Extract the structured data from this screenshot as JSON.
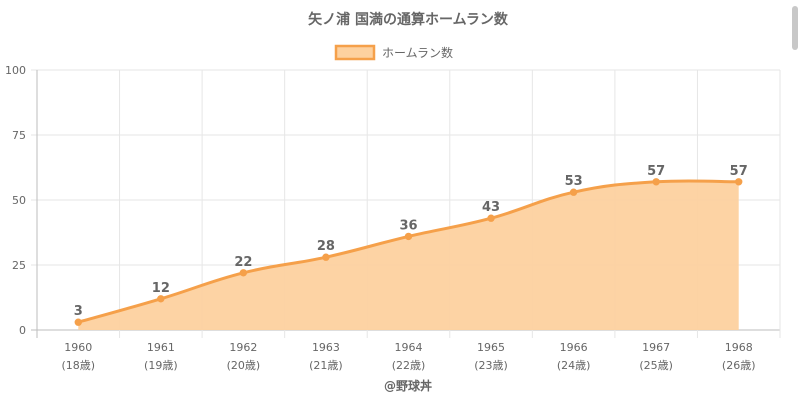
{
  "chart_data": {
    "type": "area",
    "title": "矢ノ浦 国満の通算ホームラン数",
    "legend": {
      "label": "ホームラン数",
      "position": "top-center"
    },
    "categories": [
      "1960",
      "1961",
      "1962",
      "1963",
      "1964",
      "1965",
      "1966",
      "1967",
      "1968"
    ],
    "sublabels": [
      "(18歳)",
      "(19歳)",
      "(20歳)",
      "(21歳)",
      "(22歳)",
      "(23歳)",
      "(24歳)",
      "(25歳)",
      "(26歳)"
    ],
    "series": [
      {
        "name": "ホームラン数",
        "values": [
          3,
          12,
          22,
          28,
          36,
          43,
          53,
          57,
          57
        ]
      }
    ],
    "ylim": [
      0,
      100
    ],
    "yticks": [
      0,
      25,
      50,
      75,
      100
    ],
    "grid": true,
    "credit": "@野球丼",
    "colors": {
      "line": "#f5a04a",
      "fill": "#fdd19f",
      "grid": "#e6e6e6",
      "text": "#666666",
      "title": "#666666"
    }
  }
}
